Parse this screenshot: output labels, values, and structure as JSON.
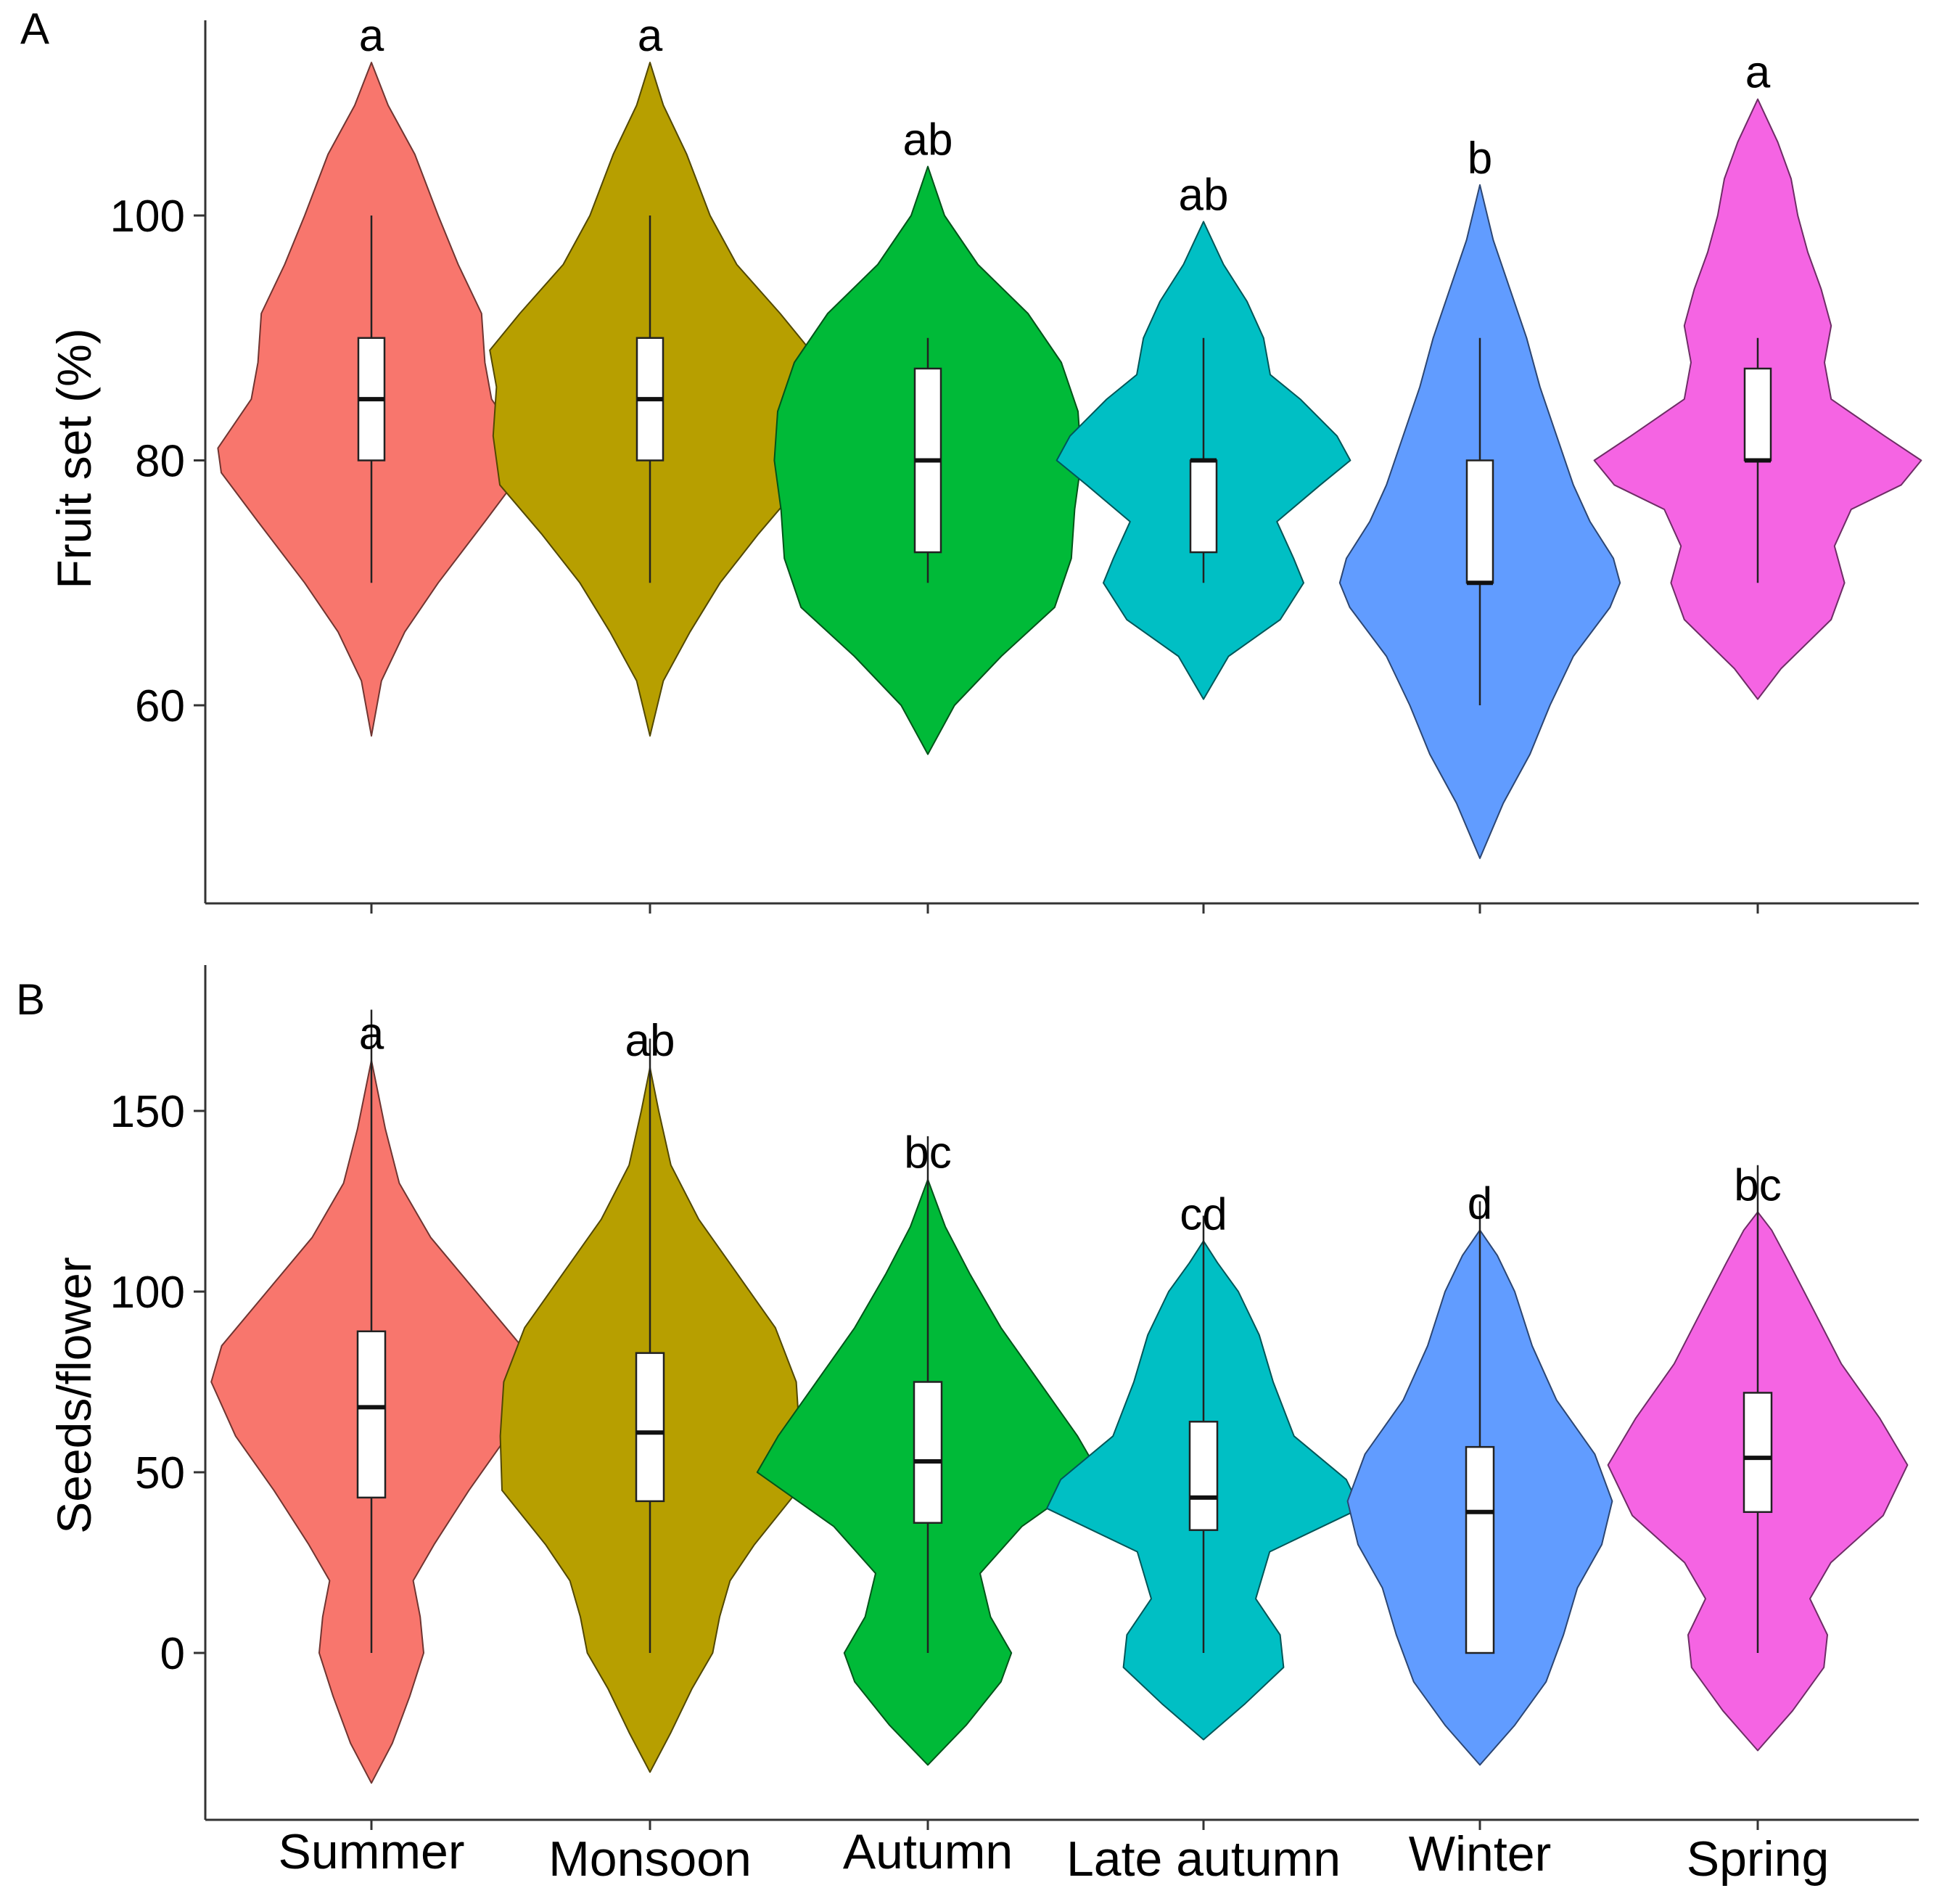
{
  "figure": {
    "categories": [
      "Summer",
      "Monsoon",
      "Autumn",
      "Late autumn",
      "Winter",
      "Spring"
    ],
    "colors": [
      "#F8766D",
      "#B79F00",
      "#00BA38",
      "#00BFC4",
      "#619CFF",
      "#F564E3"
    ]
  },
  "chart_data": [
    {
      "type": "violin",
      "panel": "A",
      "ylabel": "Fruit set (%)",
      "xlabel": "",
      "yticks": [
        60,
        80,
        100
      ],
      "ylim": [
        44,
        115
      ],
      "categories": [
        "Summer",
        "Monsoon",
        "Autumn",
        "Late autumn",
        "Winter",
        "Spring"
      ],
      "significance": [
        "a",
        "a",
        "ab",
        "ab",
        "b",
        "a"
      ],
      "boxes": [
        {
          "min": 70,
          "q1": 80,
          "median": 85,
          "q3": 90,
          "max": 100
        },
        {
          "min": 70,
          "q1": 80,
          "median": 85,
          "q3": 90,
          "max": 100
        },
        {
          "min": 70,
          "q1": 72.5,
          "median": 80,
          "q3": 87.5,
          "max": 90
        },
        {
          "min": 70,
          "q1": 72.5,
          "median": 80,
          "q3": 80,
          "max": 90
        },
        {
          "min": 60,
          "q1": 70,
          "median": 70,
          "q3": 80,
          "max": 90
        },
        {
          "min": 70,
          "q1": 80,
          "median": 80,
          "q3": 87.5,
          "max": 90
        }
      ],
      "violin_extent": [
        [
          57.5,
          112.5
        ],
        [
          57.5,
          112.5
        ],
        [
          56,
          104
        ],
        [
          60.5,
          99.5
        ],
        [
          47.5,
          102.5
        ],
        [
          60.5,
          109.5
        ]
      ],
      "density": [
        [
          [
            57.5,
            0
          ],
          [
            62,
            0.06
          ],
          [
            66,
            0.2
          ],
          [
            70,
            0.4
          ],
          [
            75,
            0.68
          ],
          [
            79,
            0.9
          ],
          [
            81,
            0.92
          ],
          [
            85,
            0.72
          ],
          [
            88,
            0.68
          ],
          [
            92,
            0.66
          ],
          [
            96,
            0.52
          ],
          [
            100,
            0.4
          ],
          [
            105,
            0.26
          ],
          [
            109,
            0.1
          ],
          [
            112.5,
            0
          ]
        ],
        [
          [
            57.5,
            0
          ],
          [
            62,
            0.08
          ],
          [
            66,
            0.24
          ],
          [
            70,
            0.42
          ],
          [
            74,
            0.65
          ],
          [
            78,
            0.9
          ],
          [
            82,
            0.94
          ],
          [
            86,
            0.92
          ],
          [
            89,
            0.96
          ],
          [
            92,
            0.78
          ],
          [
            96,
            0.52
          ],
          [
            100,
            0.36
          ],
          [
            105,
            0.22
          ],
          [
            109,
            0.08
          ],
          [
            112.5,
            0
          ]
        ],
        [
          [
            56,
            0
          ],
          [
            60,
            0.16
          ],
          [
            64,
            0.44
          ],
          [
            68,
            0.76
          ],
          [
            72,
            0.86
          ],
          [
            76,
            0.88
          ],
          [
            80,
            0.92
          ],
          [
            84,
            0.9
          ],
          [
            88,
            0.8
          ],
          [
            92,
            0.6
          ],
          [
            96,
            0.3
          ],
          [
            100,
            0.1
          ],
          [
            104,
            0
          ]
        ],
        [
          [
            60.5,
            0
          ],
          [
            64,
            0.15
          ],
          [
            67,
            0.46
          ],
          [
            70,
            0.6
          ],
          [
            72,
            0.54
          ],
          [
            75,
            0.44
          ],
          [
            78,
            0.7
          ],
          [
            80,
            0.88
          ],
          [
            82,
            0.8
          ],
          [
            85,
            0.58
          ],
          [
            87,
            0.4
          ],
          [
            90,
            0.36
          ],
          [
            93,
            0.26
          ],
          [
            96,
            0.12
          ],
          [
            99.5,
            0
          ]
        ],
        [
          [
            47.5,
            0
          ],
          [
            52,
            0.14
          ],
          [
            56,
            0.3
          ],
          [
            60,
            0.42
          ],
          [
            64,
            0.56
          ],
          [
            68,
            0.78
          ],
          [
            70,
            0.84
          ],
          [
            72,
            0.8
          ],
          [
            75,
            0.66
          ],
          [
            78,
            0.56
          ],
          [
            82,
            0.46
          ],
          [
            86,
            0.36
          ],
          [
            90,
            0.28
          ],
          [
            94,
            0.18
          ],
          [
            98,
            0.08
          ],
          [
            102.5,
            0
          ]
        ],
        [
          [
            60.5,
            0
          ],
          [
            63,
            0.14
          ],
          [
            67,
            0.44
          ],
          [
            70,
            0.52
          ],
          [
            73,
            0.46
          ],
          [
            76,
            0.56
          ],
          [
            78,
            0.86
          ],
          [
            80,
            0.98
          ],
          [
            82,
            0.76
          ],
          [
            85,
            0.44
          ],
          [
            88,
            0.4
          ],
          [
            91,
            0.44
          ],
          [
            94,
            0.38
          ],
          [
            97,
            0.3
          ],
          [
            100,
            0.24
          ],
          [
            103,
            0.2
          ],
          [
            106,
            0.12
          ],
          [
            109.5,
            0
          ]
        ]
      ]
    },
    {
      "type": "violin",
      "panel": "B",
      "ylabel": "Seeds/flower",
      "xlabel": "",
      "yticks": [
        0,
        50,
        100,
        150
      ],
      "ylim": [
        -47,
        190
      ],
      "categories": [
        "Summer",
        "Monsoon",
        "Autumn",
        "Late autumn",
        "Winter",
        "Spring"
      ],
      "significance": [
        "a",
        "ab",
        "bc",
        "cd",
        "d",
        "bc"
      ],
      "boxes": [
        {
          "min": 0,
          "q1": 43,
          "median": 68,
          "q3": 89,
          "max": 178
        },
        {
          "min": 0,
          "q1": 42,
          "median": 61,
          "q3": 83,
          "max": 170
        },
        {
          "min": 0,
          "q1": 36,
          "median": 53,
          "q3": 75,
          "max": 143
        },
        {
          "min": 0,
          "q1": 34,
          "median": 43,
          "q3": 64,
          "max": 121
        },
        {
          "min": 0,
          "q1": 0,
          "median": 39,
          "q3": 57,
          "max": 125
        },
        {
          "min": 0,
          "q1": 39,
          "median": 54,
          "q3": 72,
          "max": 135
        }
      ],
      "violin_extent": [
        [
          -36,
          164
        ],
        [
          -33,
          162
        ],
        [
          -31,
          131
        ],
        [
          -24,
          114
        ],
        [
          -31,
          117
        ],
        [
          -27,
          122
        ]
      ],
      "density": [
        [
          [
            -36,
            0
          ],
          [
            -25,
            0.12
          ],
          [
            -12,
            0.22
          ],
          [
            0,
            0.3
          ],
          [
            10,
            0.28
          ],
          [
            20,
            0.24
          ],
          [
            30,
            0.36
          ],
          [
            45,
            0.56
          ],
          [
            60,
            0.78
          ],
          [
            75,
            0.92
          ],
          [
            85,
            0.86
          ],
          [
            100,
            0.6
          ],
          [
            115,
            0.34
          ],
          [
            130,
            0.16
          ],
          [
            145,
            0.08
          ],
          [
            164,
            0
          ]
        ],
        [
          [
            -33,
            0
          ],
          [
            -22,
            0.12
          ],
          [
            -10,
            0.24
          ],
          [
            0,
            0.36
          ],
          [
            10,
            0.4
          ],
          [
            20,
            0.46
          ],
          [
            30,
            0.6
          ],
          [
            45,
            0.85
          ],
          [
            60,
            0.86
          ],
          [
            75,
            0.84
          ],
          [
            90,
            0.72
          ],
          [
            105,
            0.5
          ],
          [
            120,
            0.28
          ],
          [
            135,
            0.12
          ],
          [
            150,
            0.05
          ],
          [
            162,
            0
          ]
        ],
        [
          [
            -31,
            0
          ],
          [
            -20,
            0.22
          ],
          [
            -8,
            0.42
          ],
          [
            0,
            0.48
          ],
          [
            10,
            0.36
          ],
          [
            22,
            0.3
          ],
          [
            35,
            0.54
          ],
          [
            50,
            0.98
          ],
          [
            60,
            0.86
          ],
          [
            75,
            0.64
          ],
          [
            90,
            0.42
          ],
          [
            105,
            0.24
          ],
          [
            118,
            0.1
          ],
          [
            131,
            0
          ]
        ],
        [
          [
            -24,
            0
          ],
          [
            -14,
            0.24
          ],
          [
            -4,
            0.46
          ],
          [
            5,
            0.44
          ],
          [
            15,
            0.3
          ],
          [
            28,
            0.38
          ],
          [
            40,
            0.9
          ],
          [
            48,
            0.82
          ],
          [
            60,
            0.52
          ],
          [
            75,
            0.4
          ],
          [
            88,
            0.32
          ],
          [
            100,
            0.2
          ],
          [
            108,
            0.08
          ],
          [
            114,
            0
          ]
        ],
        [
          [
            -31,
            0
          ],
          [
            -20,
            0.2
          ],
          [
            -8,
            0.38
          ],
          [
            5,
            0.48
          ],
          [
            18,
            0.56
          ],
          [
            30,
            0.7
          ],
          [
            42,
            0.76
          ],
          [
            55,
            0.66
          ],
          [
            70,
            0.44
          ],
          [
            85,
            0.3
          ],
          [
            100,
            0.2
          ],
          [
            110,
            0.1
          ],
          [
            117,
            0
          ]
        ],
        [
          [
            -27,
            0
          ],
          [
            -16,
            0.2
          ],
          [
            -4,
            0.38
          ],
          [
            5,
            0.4
          ],
          [
            15,
            0.3
          ],
          [
            25,
            0.42
          ],
          [
            38,
            0.72
          ],
          [
            52,
            0.86
          ],
          [
            65,
            0.7
          ],
          [
            80,
            0.48
          ],
          [
            95,
            0.32
          ],
          [
            108,
            0.18
          ],
          [
            117,
            0.08
          ],
          [
            122,
            0
          ]
        ]
      ]
    }
  ]
}
